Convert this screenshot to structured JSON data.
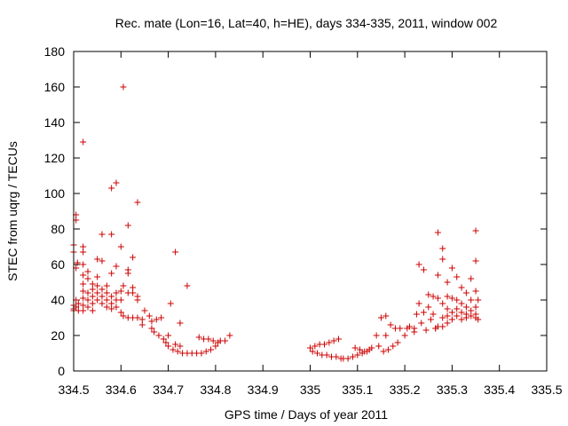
{
  "chart_data": {
    "type": "scatter",
    "title": "Rec. mate (Lon=16, Lat=40, h=HE), days 334-335, 2011, window 002",
    "xlabel": "GPS time / Days of year 2011",
    "ylabel": "STEC from uqrg / TECUs",
    "xlim": [
      334.5,
      335.5
    ],
    "ylim": [
      0,
      180
    ],
    "xticks": [
      "334.5",
      "334.6",
      "334.7",
      "334.8",
      "334.9",
      "335",
      "335.1",
      "335.2",
      "335.3",
      "335.4",
      "335.5"
    ],
    "yticks": [
      "0",
      "20",
      "40",
      "60",
      "80",
      "100",
      "120",
      "140",
      "160",
      "180"
    ],
    "grid": false,
    "legend": "none",
    "marker": "plus",
    "color": "#cc0000",
    "series": [
      {
        "points": [
          [
            334.5,
            34
          ],
          [
            334.5,
            35
          ],
          [
            334.5,
            37
          ],
          [
            334.5,
            67
          ],
          [
            334.5,
            71
          ],
          [
            334.505,
            58
          ],
          [
            334.505,
            85
          ],
          [
            334.505,
            88
          ],
          [
            334.505,
            36
          ],
          [
            334.505,
            40
          ],
          [
            334.508,
            61
          ],
          [
            334.51,
            34
          ],
          [
            334.51,
            38
          ],
          [
            334.52,
            129
          ],
          [
            334.52,
            70
          ],
          [
            334.52,
            67
          ],
          [
            334.52,
            60
          ],
          [
            334.52,
            54
          ],
          [
            334.52,
            49
          ],
          [
            334.52,
            45
          ],
          [
            334.52,
            41
          ],
          [
            334.52,
            37
          ],
          [
            334.52,
            34
          ],
          [
            334.53,
            56
          ],
          [
            334.53,
            52
          ],
          [
            334.53,
            44
          ],
          [
            334.53,
            40
          ],
          [
            334.53,
            36
          ],
          [
            334.54,
            49
          ],
          [
            334.54,
            46
          ],
          [
            334.54,
            42
          ],
          [
            334.54,
            38
          ],
          [
            334.54,
            34
          ],
          [
            334.55,
            63
          ],
          [
            334.55,
            53
          ],
          [
            334.55,
            48
          ],
          [
            334.55,
            44
          ],
          [
            334.55,
            40
          ],
          [
            334.56,
            77
          ],
          [
            334.56,
            62
          ],
          [
            334.56,
            46
          ],
          [
            334.56,
            42
          ],
          [
            334.56,
            38
          ],
          [
            334.57,
            48
          ],
          [
            334.57,
            44
          ],
          [
            334.57,
            40
          ],
          [
            334.57,
            36
          ],
          [
            334.58,
            103
          ],
          [
            334.58,
            77
          ],
          [
            334.58,
            55
          ],
          [
            334.58,
            42
          ],
          [
            334.58,
            38
          ],
          [
            334.58,
            35
          ],
          [
            334.59,
            106
          ],
          [
            334.59,
            59
          ],
          [
            334.59,
            44
          ],
          [
            334.59,
            40
          ],
          [
            334.59,
            36
          ],
          [
            334.6,
            70
          ],
          [
            334.6,
            45
          ],
          [
            334.6,
            40
          ],
          [
            334.6,
            33
          ],
          [
            334.605,
            160
          ],
          [
            334.605,
            48
          ],
          [
            334.605,
            31
          ],
          [
            334.615,
            82
          ],
          [
            334.615,
            57
          ],
          [
            334.615,
            55
          ],
          [
            334.615,
            44
          ],
          [
            334.615,
            30
          ],
          [
            334.625,
            64
          ],
          [
            334.625,
            47
          ],
          [
            334.625,
            44
          ],
          [
            334.625,
            30
          ],
          [
            334.635,
            95
          ],
          [
            334.635,
            42
          ],
          [
            334.635,
            40
          ],
          [
            334.635,
            30
          ],
          [
            334.645,
            29
          ],
          [
            334.645,
            26
          ],
          [
            334.65,
            34
          ],
          [
            334.66,
            31
          ],
          [
            334.665,
            28
          ],
          [
            334.665,
            24
          ],
          [
            334.67,
            22
          ],
          [
            334.675,
            29
          ],
          [
            334.68,
            20
          ],
          [
            334.685,
            30
          ],
          [
            334.69,
            18
          ],
          [
            334.695,
            16
          ],
          [
            334.7,
            20
          ],
          [
            334.7,
            14
          ],
          [
            334.705,
            38
          ],
          [
            334.71,
            12
          ],
          [
            334.715,
            67
          ],
          [
            334.715,
            15
          ],
          [
            334.72,
            11
          ],
          [
            334.725,
            27
          ],
          [
            334.725,
            14
          ],
          [
            334.73,
            10
          ],
          [
            334.74,
            48
          ],
          [
            334.74,
            10
          ],
          [
            334.75,
            10
          ],
          [
            334.76,
            10
          ],
          [
            334.765,
            19
          ],
          [
            334.77,
            10
          ],
          [
            334.775,
            18
          ],
          [
            334.78,
            11
          ],
          [
            334.785,
            18
          ],
          [
            334.79,
            12
          ],
          [
            334.795,
            17
          ],
          [
            334.8,
            14
          ],
          [
            334.805,
            16
          ],
          [
            334.81,
            17
          ],
          [
            334.82,
            17
          ],
          [
            334.83,
            20
          ],
          [
            335.0,
            13
          ],
          [
            335.005,
            11
          ],
          [
            335.01,
            14
          ],
          [
            335.015,
            10
          ],
          [
            335.02,
            15
          ],
          [
            335.025,
            9
          ],
          [
            335.03,
            15
          ],
          [
            335.035,
            9
          ],
          [
            335.04,
            16
          ],
          [
            335.045,
            8
          ],
          [
            335.05,
            17
          ],
          [
            335.055,
            8
          ],
          [
            335.06,
            18
          ],
          [
            335.065,
            7
          ],
          [
            335.07,
            7
          ],
          [
            335.08,
            7
          ],
          [
            335.09,
            8
          ],
          [
            335.095,
            13
          ],
          [
            335.1,
            9
          ],
          [
            335.105,
            12
          ],
          [
            335.11,
            10
          ],
          [
            335.115,
            11
          ],
          [
            335.12,
            11
          ],
          [
            335.125,
            12
          ],
          [
            335.13,
            13
          ],
          [
            335.14,
            20
          ],
          [
            335.145,
            14
          ],
          [
            335.15,
            30
          ],
          [
            335.155,
            11
          ],
          [
            335.16,
            31
          ],
          [
            335.16,
            20
          ],
          [
            335.165,
            12
          ],
          [
            335.17,
            26
          ],
          [
            335.175,
            14
          ],
          [
            335.18,
            24
          ],
          [
            335.185,
            16
          ],
          [
            335.19,
            24
          ],
          [
            335.2,
            20
          ],
          [
            335.205,
            24
          ],
          [
            335.21,
            25
          ],
          [
            335.22,
            22
          ],
          [
            335.22,
            24
          ],
          [
            335.225,
            32
          ],
          [
            335.23,
            60
          ],
          [
            335.23,
            38
          ],
          [
            335.235,
            27
          ],
          [
            335.24,
            57
          ],
          [
            335.24,
            33
          ],
          [
            335.245,
            23
          ],
          [
            335.25,
            43
          ],
          [
            335.25,
            36
          ],
          [
            335.255,
            29
          ],
          [
            335.26,
            42
          ],
          [
            335.26,
            32
          ],
          [
            335.265,
            24
          ],
          [
            335.265,
            24
          ],
          [
            335.27,
            78
          ],
          [
            335.27,
            54
          ],
          [
            335.27,
            41
          ],
          [
            335.27,
            25
          ],
          [
            335.28,
            69
          ],
          [
            335.28,
            63
          ],
          [
            335.28,
            38
          ],
          [
            335.28,
            30
          ],
          [
            335.28,
            25
          ],
          [
            335.29,
            50
          ],
          [
            335.29,
            42
          ],
          [
            335.29,
            35
          ],
          [
            335.29,
            31
          ],
          [
            335.29,
            27
          ],
          [
            335.3,
            58
          ],
          [
            335.3,
            41
          ],
          [
            335.3,
            33
          ],
          [
            335.3,
            29
          ],
          [
            335.31,
            53
          ],
          [
            335.31,
            40
          ],
          [
            335.31,
            35
          ],
          [
            335.31,
            31
          ],
          [
            335.32,
            47
          ],
          [
            335.32,
            38
          ],
          [
            335.32,
            33
          ],
          [
            335.32,
            29
          ],
          [
            335.33,
            44
          ],
          [
            335.33,
            36
          ],
          [
            335.33,
            32
          ],
          [
            335.33,
            30
          ],
          [
            335.34,
            52
          ],
          [
            335.34,
            40
          ],
          [
            335.34,
            34
          ],
          [
            335.34,
            31
          ],
          [
            335.35,
            79
          ],
          [
            335.35,
            62
          ],
          [
            335.35,
            45
          ],
          [
            335.35,
            36
          ],
          [
            335.35,
            32
          ],
          [
            335.35,
            30
          ],
          [
            335.355,
            40
          ],
          [
            335.355,
            29
          ]
        ]
      }
    ]
  }
}
